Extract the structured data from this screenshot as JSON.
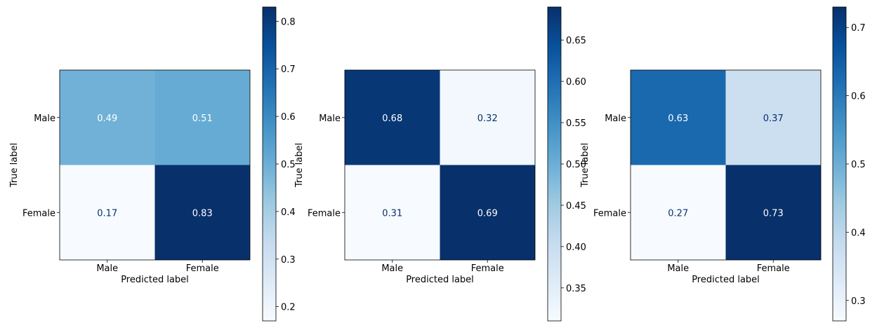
{
  "chart_data": [
    {
      "type": "heatmap",
      "title": "",
      "xlabel": "Predicted label",
      "ylabel": "True label",
      "x_categories": [
        "Male",
        "Female"
      ],
      "y_categories": [
        "Male",
        "Female"
      ],
      "values": [
        [
          0.49,
          0.51
        ],
        [
          0.17,
          0.83
        ]
      ],
      "colormap": "Blues",
      "vmin": 0.17,
      "vmax": 0.83,
      "colorbar_ticks": [
        "0.2",
        "0.3",
        "0.4",
        "0.5",
        "0.6",
        "0.7",
        "0.8"
      ],
      "grid": false
    },
    {
      "type": "heatmap",
      "title": "",
      "xlabel": "Predicted label",
      "ylabel": "True label",
      "x_categories": [
        "Male",
        "Female"
      ],
      "y_categories": [
        "Male",
        "Female"
      ],
      "values": [
        [
          0.68,
          0.32
        ],
        [
          0.31,
          0.69
        ]
      ],
      "colormap": "Blues",
      "vmin": 0.31,
      "vmax": 0.69,
      "colorbar_ticks": [
        "0.35",
        "0.40",
        "0.45",
        "0.50",
        "0.55",
        "0.60",
        "0.65"
      ],
      "grid": false
    },
    {
      "type": "heatmap",
      "title": "",
      "xlabel": "Predicted label",
      "ylabel": "True label",
      "x_categories": [
        "Male",
        "Female"
      ],
      "y_categories": [
        "Male",
        "Female"
      ],
      "values": [
        [
          0.63,
          0.37
        ],
        [
          0.27,
          0.73
        ]
      ],
      "colormap": "Blues",
      "vmin": 0.27,
      "vmax": 0.73,
      "colorbar_ticks": [
        "0.3",
        "0.4",
        "0.5",
        "0.6",
        "0.7"
      ],
      "grid": false
    }
  ]
}
